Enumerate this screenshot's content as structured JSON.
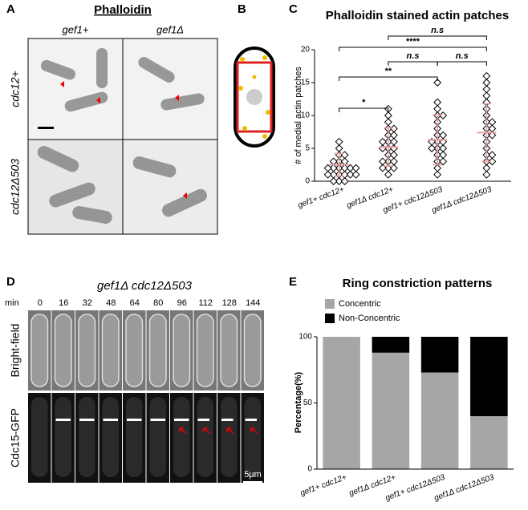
{
  "panels": {
    "letters": [
      "A",
      "B",
      "C",
      "D",
      "E"
    ],
    "a": {
      "title": "Phalloidin",
      "columns": [
        "gef1+",
        "gef1Δ"
      ],
      "rows": [
        "cdc12+",
        "cdc12Δ503"
      ]
    },
    "d": {
      "title": "gef1Δ cdc12Δ503",
      "time_unit": "min",
      "times": [
        "0",
        "16",
        "32",
        "48",
        "64",
        "80",
        "96",
        "112",
        "128",
        "144"
      ],
      "rows": [
        "Bright-field",
        "Cdc15-GFP"
      ],
      "scale": "5μm"
    }
  },
  "chart_data": [
    {
      "type": "dotplot",
      "title": "Phalloidin stained actin patches",
      "ylabel": "# of medial actin patches",
      "categories": [
        "gef1+ cdc12+",
        "gef1Δ cdc12+",
        "gef1+ cdc12Δ503",
        "gef1Δ cdc12Δ503"
      ],
      "points": [
        [
          0,
          0,
          1,
          1,
          1,
          1,
          1,
          2,
          2,
          2,
          2,
          2,
          3,
          3,
          3,
          4,
          4,
          5,
          6,
          0,
          1,
          2
        ],
        [
          1,
          2,
          2,
          3,
          3,
          4,
          4,
          5,
          5,
          5,
          6,
          6,
          6,
          7,
          7,
          8,
          8,
          9,
          10,
          11,
          2,
          3
        ],
        [
          1,
          2,
          3,
          3,
          4,
          4,
          5,
          5,
          5,
          6,
          6,
          6,
          7,
          7,
          8,
          9,
          10,
          10,
          11,
          12,
          15
        ],
        [
          1,
          2,
          3,
          3,
          4,
          5,
          6,
          7,
          7,
          8,
          8,
          9,
          9,
          10,
          11,
          12,
          13,
          14,
          15,
          16,
          4
        ]
      ],
      "means": [
        2.5,
        5.2,
        6.3,
        7.4
      ],
      "sd": [
        1.7,
        2.9,
        3.8,
        4.4
      ],
      "error_color": "#e8a0a0",
      "significance": [
        "*",
        "**",
        "****",
        "n.s",
        "n.s",
        "n.s"
      ],
      "ylim": [
        0,
        20
      ],
      "yticks": [
        0,
        5,
        10,
        15,
        20
      ]
    },
    {
      "type": "stacked-bar",
      "title": "Ring constriction patterns",
      "ylabel": "Percentage(%)",
      "categories": [
        "gef1+ cdc12+",
        "gef1Δ cdc12+",
        "gef1+ cdc12Δ503",
        "gef1Δ cdc12Δ503"
      ],
      "series": [
        {
          "name": "Concentric",
          "color": "#a6a6a8",
          "values": [
            100,
            88,
            73,
            40
          ]
        },
        {
          "name": "Non-Concentric",
          "color": "#000000",
          "values": [
            0,
            12,
            27,
            60
          ]
        }
      ],
      "ylim": [
        0,
        100
      ],
      "yticks": [
        0,
        50,
        100
      ]
    }
  ]
}
